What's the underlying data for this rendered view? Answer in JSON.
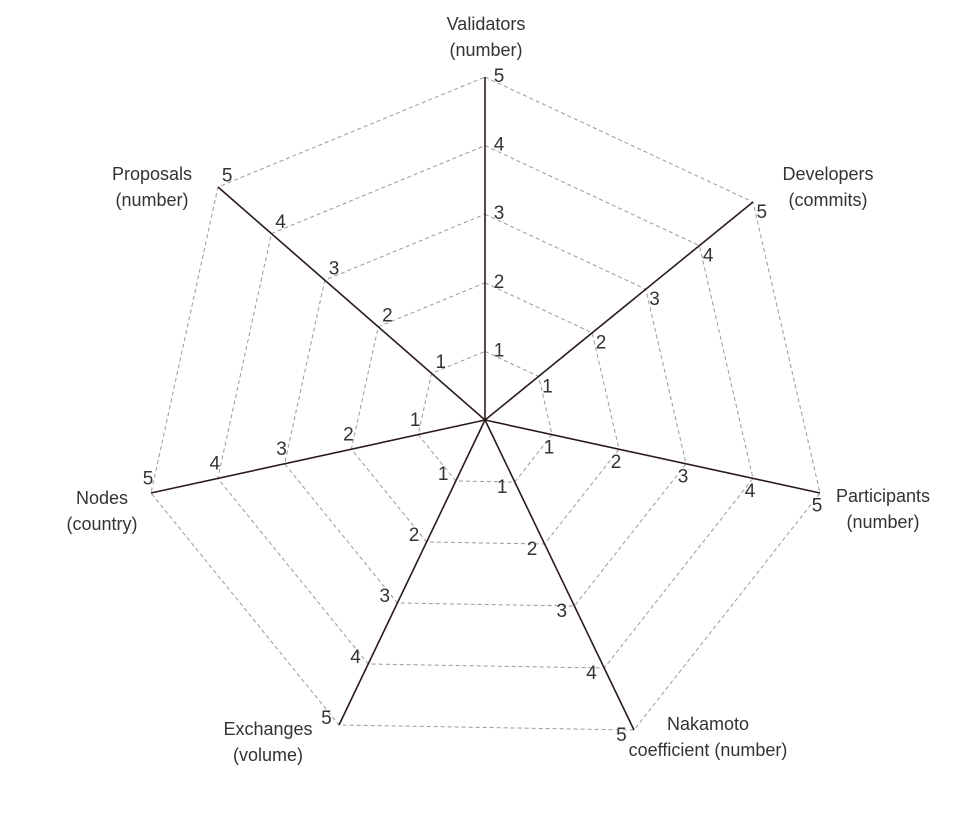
{
  "diagram": {
    "levels": [
      "1",
      "2",
      "3",
      "4",
      "5"
    ],
    "axes": [
      {
        "key": "validators",
        "lines": [
          "Validators",
          "(number)"
        ]
      },
      {
        "key": "developers",
        "lines": [
          "Developers",
          "(commits)"
        ]
      },
      {
        "key": "participants",
        "lines": [
          "Participants",
          "(number)"
        ]
      },
      {
        "key": "nakamoto",
        "lines": [
          "Nakamoto",
          "coefficient  (number)"
        ]
      },
      {
        "key": "exchanges",
        "lines": [
          "Exchanges",
          "(volume)"
        ]
      },
      {
        "key": "nodes",
        "lines": [
          "Nodes",
          "(country)"
        ]
      },
      {
        "key": "proposals",
        "lines": [
          "Proposals",
          "(number)"
        ]
      }
    ]
  }
}
